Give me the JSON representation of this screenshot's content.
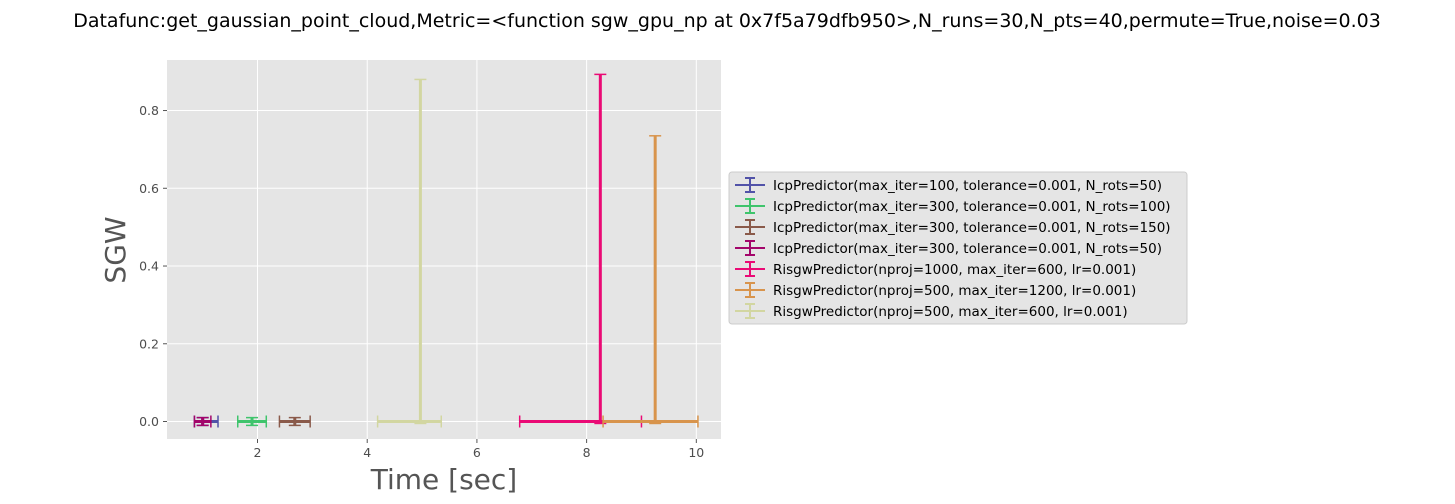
{
  "chart_data": {
    "type": "errorbar",
    "title": "Datafunc:get_gaussian_point_cloud,Metric=<function sgw_gpu_np at 0x7f5a79dfb950>,N_runs=30,N_pts=40,permute=True,noise=0.03",
    "xlabel": "Time [sec]",
    "ylabel": "SGW",
    "xlim": [
      0.35,
      10.45
    ],
    "ylim": [
      -0.045,
      0.93
    ],
    "xticks": [
      2,
      4,
      6,
      8,
      10
    ],
    "xtick_labels": [
      "2",
      "4",
      "6",
      "8",
      "10"
    ],
    "yticks": [
      0.0,
      0.2,
      0.4,
      0.6,
      0.8
    ],
    "ytick_labels": [
      "0.0",
      "0.2",
      "0.4",
      "0.6",
      "0.8"
    ],
    "grid": true,
    "legend_placement": "center-left-outside",
    "series": [
      {
        "name": "IcpPredictor(max_iter=100, tolerance=0.001, N_rots=50)",
        "color": "#5152a8",
        "x": 1.0,
        "y": 0.0,
        "xerr": [
          0.15,
          0.28
        ],
        "yerr": [
          0.01,
          0.01
        ]
      },
      {
        "name": "IcpPredictor(max_iter=300, tolerance=0.001, N_rots=100)",
        "color": "#3fc46c",
        "x": 1.9,
        "y": 0.0,
        "xerr": [
          0.26,
          0.26
        ],
        "yerr": [
          0.01,
          0.01
        ]
      },
      {
        "name": "IcpPredictor(max_iter=300, tolerance=0.001, N_rots=150)",
        "color": "#8a5a4a",
        "x": 2.68,
        "y": 0.0,
        "xerr": [
          0.28,
          0.28
        ],
        "yerr": [
          0.01,
          0.01
        ]
      },
      {
        "name": "IcpPredictor(max_iter=300, tolerance=0.001, N_rots=50)",
        "color": "#a3056b",
        "x": 1.0,
        "y": 0.0,
        "xerr": [
          0.15,
          0.15
        ],
        "yerr": [
          0.01,
          0.01
        ]
      },
      {
        "name": "RisgwPredictor(nproj=1000, max_iter=600, lr=0.001)",
        "color": "#ea0a75",
        "x": 8.25,
        "y": 0.0,
        "xerr": [
          1.47,
          0.75
        ],
        "yerr": [
          0.005,
          0.893
        ]
      },
      {
        "name": "RisgwPredictor(nproj=500, max_iter=1200, lr=0.001)",
        "color": "#d8944c",
        "x": 9.25,
        "y": 0.0,
        "xerr": [
          0.95,
          0.78
        ],
        "yerr": [
          0.005,
          0.735
        ]
      },
      {
        "name": "RisgwPredictor(nproj=500, max_iter=600, lr=0.001)",
        "color": "#d2d6a1",
        "x": 4.97,
        "y": 0.0,
        "xerr": [
          0.78,
          0.38
        ],
        "yerr": [
          0.005,
          0.88
        ]
      }
    ]
  }
}
